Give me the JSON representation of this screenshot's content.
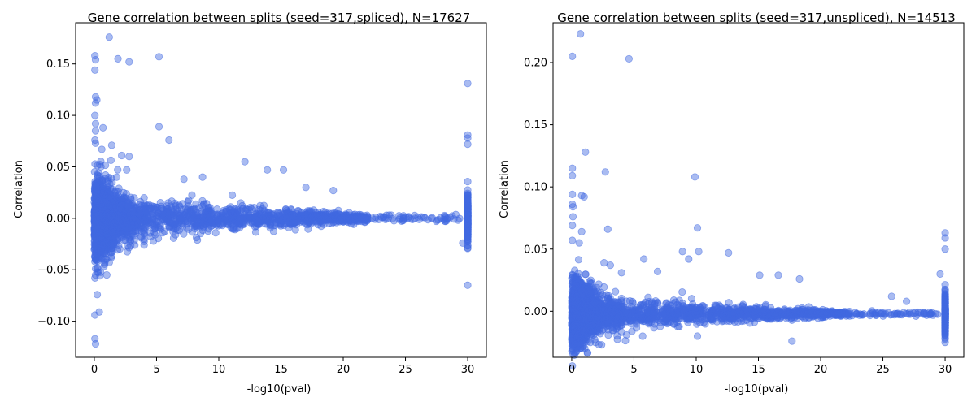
{
  "chart_data": [
    {
      "type": "scatter",
      "title": "Gene correlation between splits (seed=317,spliced), N=17627",
      "xlabel": "-log10(pval)",
      "ylabel": "Correlation",
      "xlim": [
        -1.5,
        31.5
      ],
      "ylim": [
        -0.135,
        0.19
      ],
      "xticks": [
        0,
        5,
        10,
        15,
        20,
        25,
        30
      ],
      "xtick_labels": [
        "0",
        "5",
        "10",
        "15",
        "20",
        "25",
        "30"
      ],
      "yticks": [
        -0.1,
        -0.05,
        0.0,
        0.05,
        0.1,
        0.15
      ],
      "ytick_labels": [
        "−0.10",
        "−0.05",
        "0.00",
        "0.05",
        "0.10",
        "0.15"
      ],
      "grid": false,
      "marker_color": "#4169e1",
      "marker_alpha": 0.45,
      "outlier_points": [
        {
          "x": 1.2,
          "y": 0.176
        },
        {
          "x": 0.05,
          "y": 0.158
        },
        {
          "x": 0.1,
          "y": 0.154
        },
        {
          "x": 1.9,
          "y": 0.155
        },
        {
          "x": 5.2,
          "y": 0.157
        },
        {
          "x": 2.8,
          "y": 0.152
        },
        {
          "x": 0.05,
          "y": 0.144
        },
        {
          "x": 30,
          "y": 0.131
        },
        {
          "x": 0.1,
          "y": 0.118
        },
        {
          "x": 0.2,
          "y": 0.115
        },
        {
          "x": 0.1,
          "y": 0.112
        },
        {
          "x": 0.05,
          "y": 0.1
        },
        {
          "x": 0.1,
          "y": 0.092
        },
        {
          "x": 5.2,
          "y": 0.089
        },
        {
          "x": 0.7,
          "y": 0.088
        },
        {
          "x": 0.1,
          "y": 0.085
        },
        {
          "x": 30,
          "y": 0.081
        },
        {
          "x": 30,
          "y": 0.078
        },
        {
          "x": 6.0,
          "y": 0.076
        },
        {
          "x": 0.05,
          "y": 0.076
        },
        {
          "x": 0.1,
          "y": 0.073
        },
        {
          "x": 30,
          "y": 0.072
        },
        {
          "x": 1.4,
          "y": 0.071
        },
        {
          "x": 0.6,
          "y": 0.067
        },
        {
          "x": 2.2,
          "y": 0.061
        },
        {
          "x": 2.8,
          "y": 0.06
        },
        {
          "x": 12.1,
          "y": 0.055
        },
        {
          "x": 13.9,
          "y": 0.047
        },
        {
          "x": 15.2,
          "y": 0.047
        },
        {
          "x": 2.6,
          "y": 0.047
        },
        {
          "x": 8.7,
          "y": 0.04
        },
        {
          "x": 1.8,
          "y": 0.04
        },
        {
          "x": 7.2,
          "y": 0.038
        },
        {
          "x": 17.0,
          "y": 0.03
        },
        {
          "x": 19.2,
          "y": 0.027
        },
        {
          "x": 0.05,
          "y": -0.042
        },
        {
          "x": 1.2,
          "y": -0.043
        },
        {
          "x": 0.1,
          "y": -0.049
        },
        {
          "x": 1.0,
          "y": -0.055
        },
        {
          "x": 0.1,
          "y": -0.055
        },
        {
          "x": 0.05,
          "y": -0.058
        },
        {
          "x": 30,
          "y": -0.065
        },
        {
          "x": 0.4,
          "y": -0.091
        },
        {
          "x": 0.05,
          "y": -0.094
        },
        {
          "x": 0.05,
          "y": -0.117
        },
        {
          "x": 0.1,
          "y": -0.122
        },
        {
          "x": 4.0,
          "y": -0.026
        },
        {
          "x": 29.6,
          "y": -0.024
        }
      ]
    },
    {
      "type": "scatter",
      "title": "Gene correlation between splits (seed=317,unspliced), N=14513",
      "xlabel": "-log10(pval)",
      "ylabel": "Correlation",
      "xlim": [
        -1.5,
        31.5
      ],
      "ylim": [
        -0.037,
        0.232
      ],
      "xticks": [
        0,
        5,
        10,
        15,
        20,
        25,
        30
      ],
      "xtick_labels": [
        "0",
        "5",
        "10",
        "15",
        "20",
        "25",
        "30"
      ],
      "yticks": [
        0.0,
        0.05,
        0.1,
        0.15,
        0.2
      ],
      "ytick_labels": [
        "0.00",
        "0.05",
        "0.10",
        "0.15",
        "0.20"
      ],
      "grid": false,
      "marker_color": "#4169e1",
      "marker_alpha": 0.45,
      "outlier_points": [
        {
          "x": 0.7,
          "y": 0.223
        },
        {
          "x": 0.05,
          "y": 0.205
        },
        {
          "x": 4.6,
          "y": 0.203
        },
        {
          "x": 1.1,
          "y": 0.128
        },
        {
          "x": 0.05,
          "y": 0.115
        },
        {
          "x": 2.7,
          "y": 0.112
        },
        {
          "x": 0.05,
          "y": 0.109
        },
        {
          "x": 9.9,
          "y": 0.108
        },
        {
          "x": 0.05,
          "y": 0.094
        },
        {
          "x": 0.8,
          "y": 0.093
        },
        {
          "x": 1.0,
          "y": 0.092
        },
        {
          "x": 0.05,
          "y": 0.086
        },
        {
          "x": 0.1,
          "y": 0.084
        },
        {
          "x": 0.1,
          "y": 0.076
        },
        {
          "x": 0.05,
          "y": 0.069
        },
        {
          "x": 10.1,
          "y": 0.067
        },
        {
          "x": 2.9,
          "y": 0.066
        },
        {
          "x": 0.8,
          "y": 0.064
        },
        {
          "x": 30,
          "y": 0.063
        },
        {
          "x": 30,
          "y": 0.059
        },
        {
          "x": 0.05,
          "y": 0.057
        },
        {
          "x": 0.6,
          "y": 0.055
        },
        {
          "x": 30,
          "y": 0.05
        },
        {
          "x": 8.9,
          "y": 0.048
        },
        {
          "x": 10.2,
          "y": 0.048
        },
        {
          "x": 12.6,
          "y": 0.047
        },
        {
          "x": 9.4,
          "y": 0.042
        },
        {
          "x": 5.8,
          "y": 0.042
        },
        {
          "x": 2.6,
          "y": 0.039
        },
        {
          "x": 3.1,
          "y": 0.037
        },
        {
          "x": 6.9,
          "y": 0.032
        },
        {
          "x": 4.0,
          "y": 0.031
        },
        {
          "x": 29.6,
          "y": 0.03
        },
        {
          "x": 15.1,
          "y": 0.029
        },
        {
          "x": 18.3,
          "y": 0.026
        },
        {
          "x": 16.6,
          "y": 0.029
        },
        {
          "x": 25.7,
          "y": 0.012
        },
        {
          "x": 26.9,
          "y": 0.008
        },
        {
          "x": 30,
          "y": -0.025
        },
        {
          "x": 2.4,
          "y": -0.027
        },
        {
          "x": 17.7,
          "y": -0.024
        },
        {
          "x": 0.05,
          "y": -0.025
        },
        {
          "x": 10.1,
          "y": -0.02
        },
        {
          "x": 5.7,
          "y": -0.02
        },
        {
          "x": 4.4,
          "y": -0.019
        }
      ]
    }
  ]
}
